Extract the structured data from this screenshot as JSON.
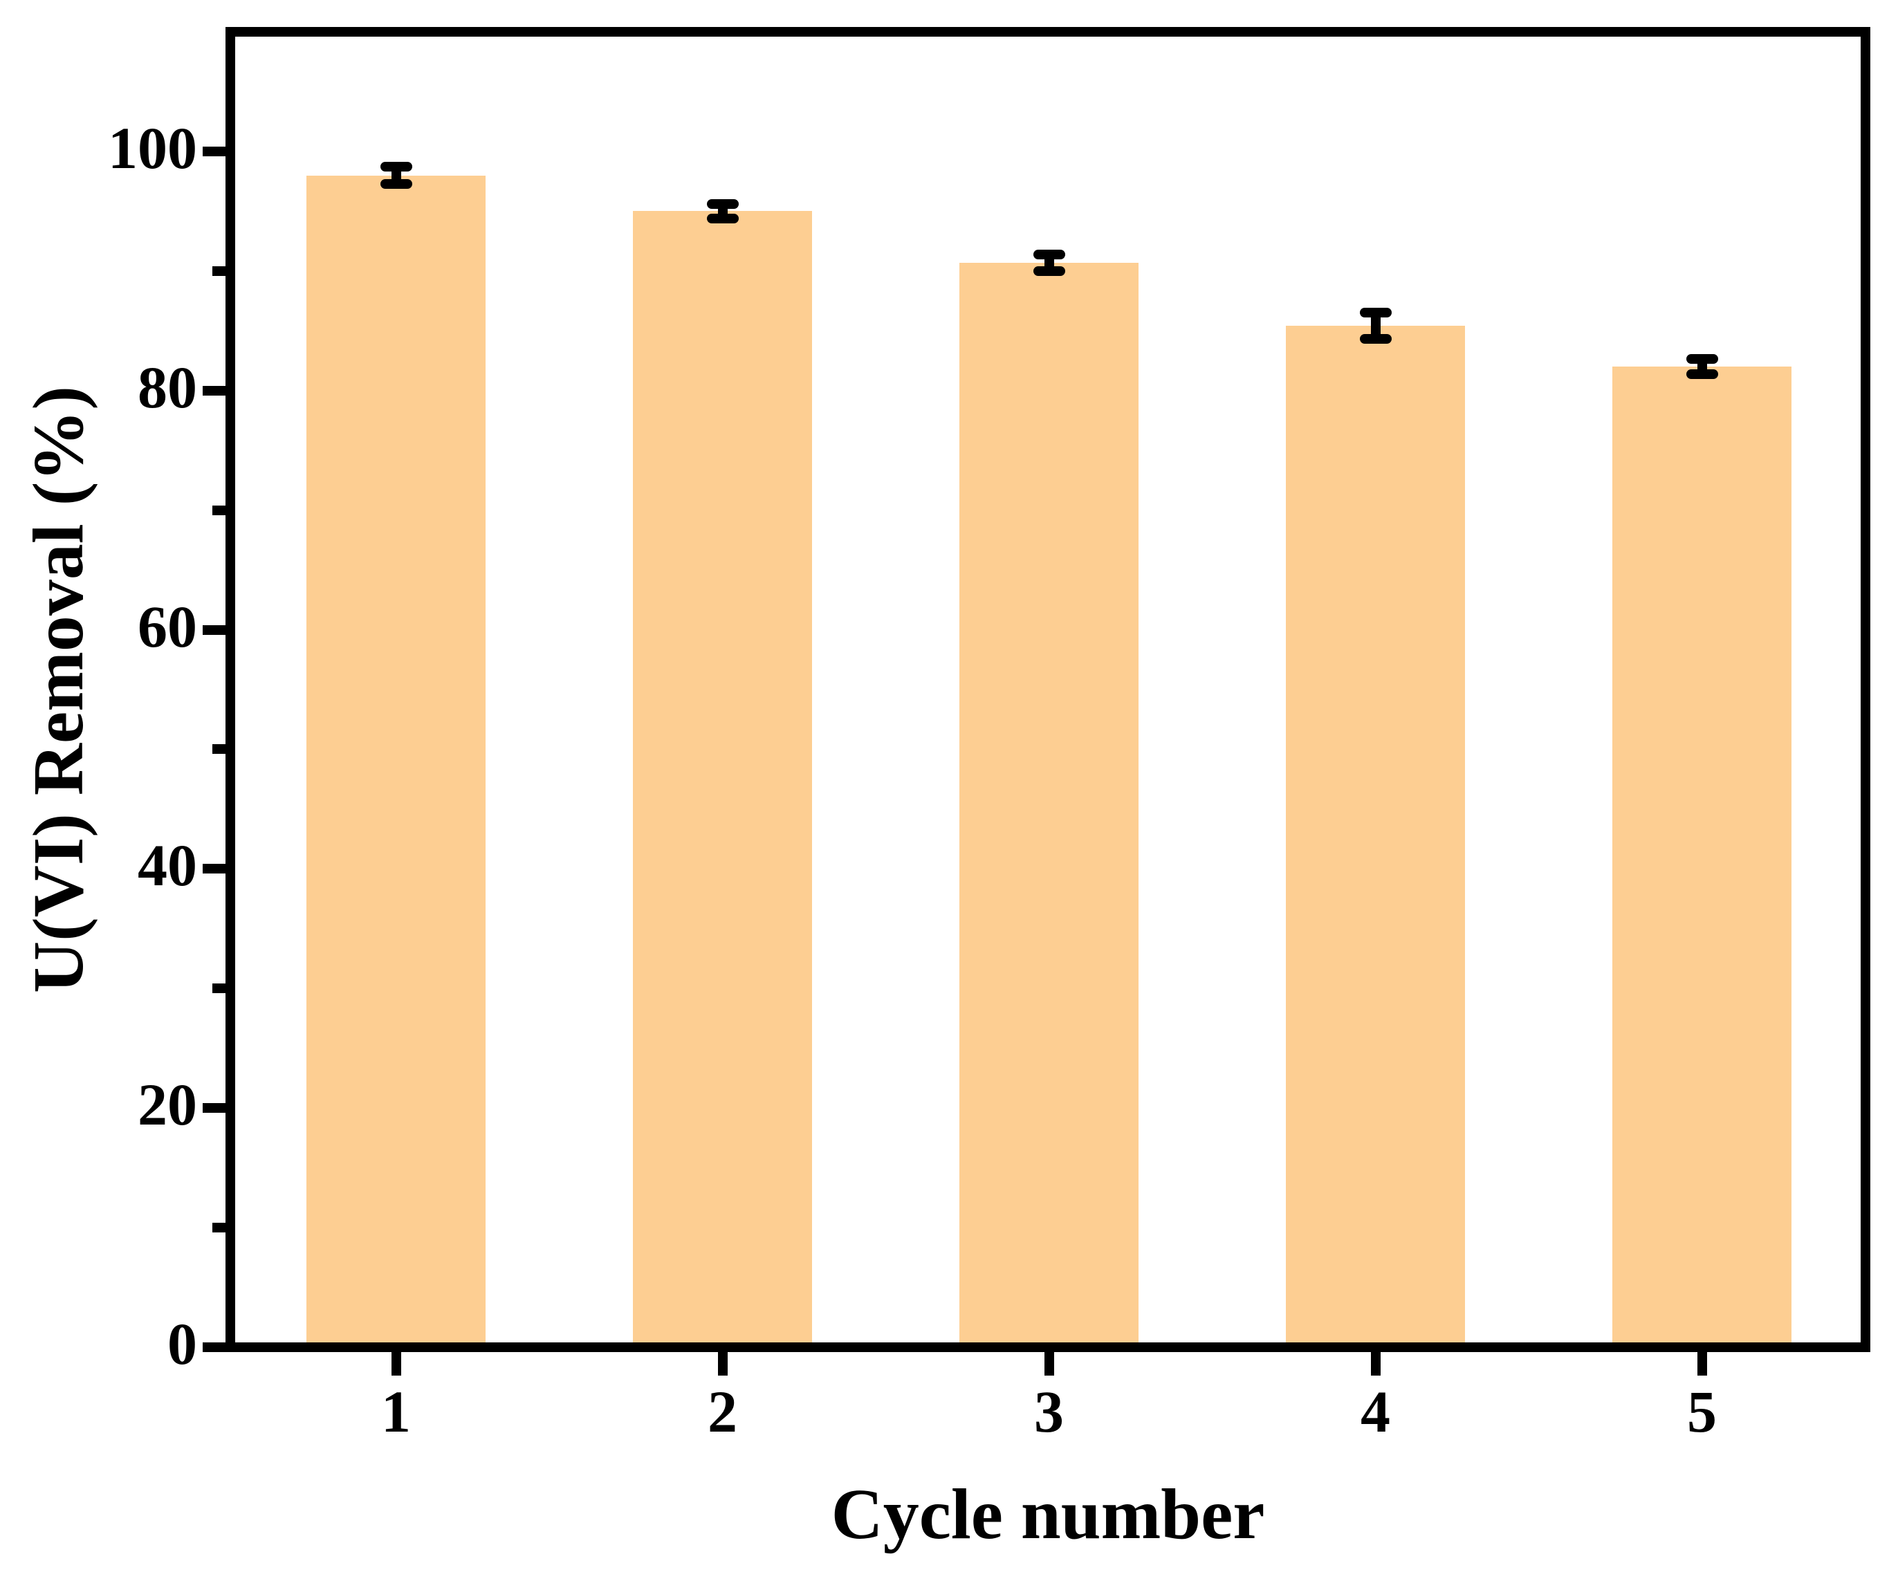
{
  "figure": {
    "background_color": "#FFFFFF",
    "frame_color": "#000000"
  },
  "chart_data": {
    "type": "bar",
    "title": "",
    "xlabel": "Cycle number",
    "ylabel": "U(VI) Removal (%)",
    "categories": [
      "1",
      "2",
      "3",
      "4",
      "5"
    ],
    "values": [
      98,
      95,
      90.7,
      85.4,
      82
    ],
    "error_bars": [
      0.7,
      0.6,
      0.7,
      1.1,
      0.65
    ],
    "bar_color": "#FDCE92",
    "error_bar_color": "#000000",
    "ylim": [
      0,
      110
    ],
    "y_major_ticks": [
      0,
      20,
      40,
      60,
      80,
      100
    ],
    "y_minor_ticks": [
      10,
      30,
      50,
      70,
      90
    ],
    "x_range": [
      0.5,
      5.5
    ],
    "bar_width_fraction": 0.55,
    "grid": "off",
    "legend": "none",
    "tick_direction": "out"
  }
}
